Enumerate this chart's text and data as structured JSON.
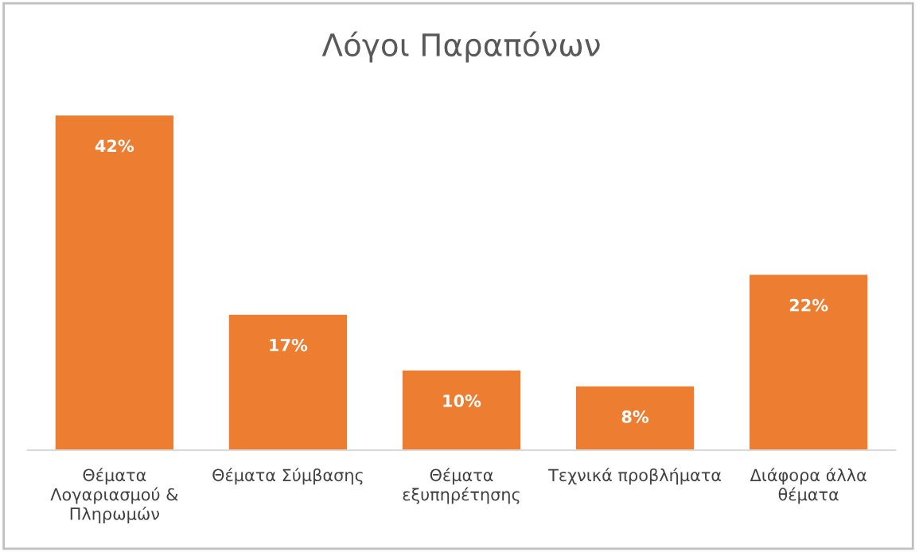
{
  "chart_data": {
    "type": "bar",
    "title": "Λόγοι Παραπόνων",
    "categories": [
      "Θέματα\nΛογαριασμού &\nΠληρωμών",
      "Θέματα Σύμβασης",
      "Θέματα\nεξυπηρέτησης",
      "Τεχνικά προβλήματα",
      "Διάφορα άλλα\nθέματα"
    ],
    "values": [
      42,
      17,
      10,
      8,
      22
    ],
    "value_labels": [
      "42%",
      "17%",
      "10%",
      "8%",
      "22%"
    ],
    "color": "#ed7d31",
    "grid": false,
    "legend": false
  }
}
